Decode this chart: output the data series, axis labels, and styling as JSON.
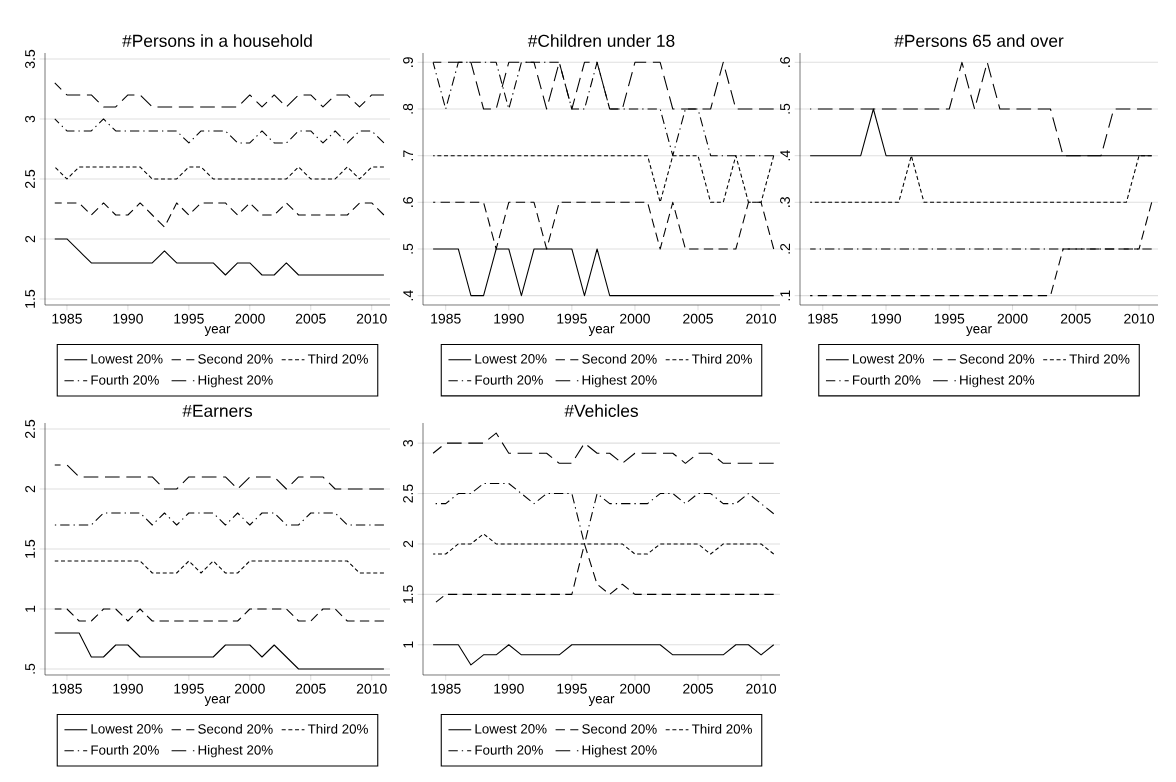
{
  "chart_data": [
    {
      "type": "line",
      "title": "#Persons in a household",
      "xlabel": "year",
      "x": [
        1984,
        1985,
        1986,
        1987,
        1988,
        1989,
        1990,
        1991,
        1992,
        1993,
        1994,
        1995,
        1996,
        1997,
        1998,
        1999,
        2000,
        2001,
        2002,
        2003,
        2004,
        2005,
        2006,
        2007,
        2008,
        2009,
        2010,
        2011
      ],
      "xlim": [
        1983.2,
        2011.5
      ],
      "xticks": [
        1985,
        1990,
        1995,
        2000,
        2005,
        2010
      ],
      "ylim": [
        1.45,
        3.55
      ],
      "yticks": [
        1.5,
        2,
        2.5,
        3,
        3.5
      ],
      "grid": "y",
      "legend": "bottom",
      "series": [
        {
          "name": "Lowest 20%",
          "color": "#000000",
          "line_style": "solid",
          "values": [
            2.0,
            2.0,
            1.9,
            1.8,
            1.8,
            1.8,
            1.8,
            1.8,
            1.8,
            1.9,
            1.8,
            1.8,
            1.8,
            1.8,
            1.7,
            1.8,
            1.8,
            1.7,
            1.7,
            1.8,
            1.7,
            1.7,
            1.7,
            1.7,
            1.7,
            1.7,
            1.7,
            1.7
          ]
        },
        {
          "name": "Second 20%",
          "color": "#000000",
          "line_style": "dashed",
          "values": [
            2.3,
            2.3,
            2.3,
            2.2,
            2.3,
            2.2,
            2.2,
            2.3,
            2.2,
            2.1,
            2.3,
            2.2,
            2.3,
            2.3,
            2.3,
            2.2,
            2.3,
            2.2,
            2.2,
            2.3,
            2.2,
            2.2,
            2.2,
            2.2,
            2.2,
            2.3,
            2.3,
            2.2
          ]
        },
        {
          "name": "Third 20%",
          "color": "#000000",
          "line_style": "dotted",
          "values": [
            2.6,
            2.5,
            2.6,
            2.6,
            2.6,
            2.6,
            2.6,
            2.6,
            2.5,
            2.5,
            2.5,
            2.6,
            2.6,
            2.5,
            2.5,
            2.5,
            2.5,
            2.5,
            2.5,
            2.5,
            2.6,
            2.5,
            2.5,
            2.5,
            2.6,
            2.5,
            2.6,
            2.6
          ]
        },
        {
          "name": "Fourth 20%",
          "color": "#000000",
          "line_style": "dashdot",
          "values": [
            3.0,
            2.9,
            2.9,
            2.9,
            3.0,
            2.9,
            2.9,
            2.9,
            2.9,
            2.9,
            2.9,
            2.8,
            2.9,
            2.9,
            2.9,
            2.8,
            2.8,
            2.9,
            2.8,
            2.8,
            2.9,
            2.9,
            2.8,
            2.9,
            2.8,
            2.9,
            2.9,
            2.8
          ]
        },
        {
          "name": "Highest 20%",
          "color": "#000000",
          "line_style": "longdash",
          "values": [
            3.3,
            3.2,
            3.2,
            3.2,
            3.1,
            3.1,
            3.2,
            3.2,
            3.1,
            3.1,
            3.1,
            3.1,
            3.1,
            3.1,
            3.1,
            3.1,
            3.2,
            3.1,
            3.2,
            3.1,
            3.2,
            3.2,
            3.1,
            3.2,
            3.2,
            3.1,
            3.2,
            3.2
          ]
        }
      ]
    },
    {
      "type": "line",
      "title": "#Children under 18",
      "xlabel": "year",
      "x": [
        1984,
        1985,
        1986,
        1987,
        1988,
        1989,
        1990,
        1991,
        1992,
        1993,
        1994,
        1995,
        1996,
        1997,
        1998,
        1999,
        2000,
        2001,
        2002,
        2003,
        2004,
        2005,
        2006,
        2007,
        2008,
        2009,
        2010,
        2011
      ],
      "xlim": [
        1983.2,
        2011.5
      ],
      "xticks": [
        1985,
        1990,
        1995,
        2000,
        2005,
        2010
      ],
      "ylim": [
        0.38,
        0.92
      ],
      "yticks": [
        {
          "value": 0.4,
          "label": ".4"
        },
        {
          "value": 0.5,
          "label": ".5"
        },
        {
          "value": 0.6,
          "label": ".6"
        },
        {
          "value": 0.7,
          "label": ".7"
        },
        {
          "value": 0.8,
          "label": ".8"
        },
        {
          "value": 0.9,
          "label": ".9"
        }
      ],
      "grid": "y",
      "legend": "bottom",
      "series": [
        {
          "name": "Lowest 20%",
          "color": "#000000",
          "line_style": "solid",
          "values": [
            0.5,
            0.5,
            0.5,
            0.4,
            0.4,
            0.5,
            0.5,
            0.4,
            0.5,
            0.5,
            0.5,
            0.5,
            0.4,
            0.5,
            0.4,
            0.4,
            0.4,
            0.4,
            0.4,
            0.4,
            0.4,
            0.4,
            0.4,
            0.4,
            0.4,
            0.4,
            0.4,
            0.4
          ]
        },
        {
          "name": "Second 20%",
          "color": "#000000",
          "line_style": "dashed",
          "values": [
            0.6,
            0.6,
            0.6,
            0.6,
            0.6,
            0.5,
            0.6,
            0.6,
            0.6,
            0.5,
            0.6,
            0.6,
            0.6,
            0.6,
            0.6,
            0.6,
            0.6,
            0.6,
            0.5,
            0.6,
            0.5,
            0.5,
            0.5,
            0.5,
            0.5,
            0.6,
            0.6,
            0.5
          ]
        },
        {
          "name": "Third 20%",
          "color": "#000000",
          "line_style": "dotted",
          "values": [
            0.7,
            0.7,
            0.7,
            0.7,
            0.7,
            0.7,
            0.7,
            0.7,
            0.7,
            0.7,
            0.7,
            0.7,
            0.7,
            0.7,
            0.7,
            0.7,
            0.7,
            0.7,
            0.6,
            0.7,
            0.7,
            0.7,
            0.6,
            0.6,
            0.7,
            0.6,
            0.6,
            0.7
          ]
        },
        {
          "name": "Fourth 20%",
          "color": "#000000",
          "line_style": "dashdot",
          "values": [
            0.9,
            0.8,
            0.9,
            0.9,
            0.9,
            0.9,
            0.8,
            0.9,
            0.9,
            0.9,
            0.9,
            0.8,
            0.8,
            0.9,
            0.8,
            0.8,
            0.8,
            0.8,
            0.8,
            0.7,
            0.8,
            0.8,
            0.7,
            0.7,
            0.7,
            0.7,
            0.7,
            0.7
          ]
        },
        {
          "name": "Highest 20%",
          "color": "#000000",
          "line_style": "longdash",
          "values": [
            0.9,
            0.9,
            0.9,
            0.9,
            0.8,
            0.8,
            0.9,
            0.9,
            0.9,
            0.8,
            0.9,
            0.8,
            0.9,
            0.9,
            0.8,
            0.8,
            0.9,
            0.9,
            0.9,
            0.8,
            0.8,
            0.8,
            0.8,
            0.9,
            0.8,
            0.8,
            0.8,
            0.8
          ]
        }
      ]
    },
    {
      "type": "line",
      "title": "#Persons 65 and over",
      "xlabel": "year",
      "x": [
        1984,
        1985,
        1986,
        1987,
        1988,
        1989,
        1990,
        1991,
        1992,
        1993,
        1994,
        1995,
        1996,
        1997,
        1998,
        1999,
        2000,
        2001,
        2002,
        2003,
        2004,
        2005,
        2006,
        2007,
        2008,
        2009,
        2010,
        2011
      ],
      "xlim": [
        1983.2,
        2011.5
      ],
      "xticks": [
        1985,
        1990,
        1995,
        2000,
        2005,
        2010
      ],
      "ylim": [
        0.08,
        0.62
      ],
      "yticks": [
        {
          "value": 0.1,
          "label": ".1"
        },
        {
          "value": 0.2,
          "label": ".2"
        },
        {
          "value": 0.3,
          "label": ".3"
        },
        {
          "value": 0.4,
          "label": ".4"
        },
        {
          "value": 0.5,
          "label": ".5"
        },
        {
          "value": 0.6,
          "label": ".6"
        }
      ],
      "grid": "y",
      "legend": "bottom",
      "series": [
        {
          "name": "Lowest 20%",
          "color": "#000000",
          "line_style": "solid",
          "values": [
            0.4,
            0.4,
            0.4,
            0.4,
            0.4,
            0.5,
            0.4,
            0.4,
            0.4,
            0.4,
            0.4,
            0.4,
            0.4,
            0.4,
            0.4,
            0.4,
            0.4,
            0.4,
            0.4,
            0.4,
            0.4,
            0.4,
            0.4,
            0.4,
            0.4,
            0.4,
            0.4,
            0.4
          ]
        },
        {
          "name": "Second 20%",
          "color": "#000000",
          "line_style": "dashed",
          "values": [
            0.1,
            0.1,
            0.1,
            0.1,
            0.1,
            0.1,
            0.1,
            0.1,
            0.1,
            0.1,
            0.1,
            0.1,
            0.1,
            0.1,
            0.1,
            0.1,
            0.1,
            0.1,
            0.1,
            0.1,
            0.2,
            0.2,
            0.2,
            0.2,
            0.2,
            0.2,
            0.2,
            0.3
          ]
        },
        {
          "name": "Third 20%",
          "color": "#000000",
          "line_style": "dotted",
          "values": [
            0.3,
            0.3,
            0.3,
            0.3,
            0.3,
            0.3,
            0.3,
            0.3,
            0.4,
            0.3,
            0.3,
            0.3,
            0.3,
            0.3,
            0.3,
            0.3,
            0.3,
            0.3,
            0.3,
            0.3,
            0.3,
            0.3,
            0.3,
            0.3,
            0.3,
            0.3,
            0.4,
            0.4
          ]
        },
        {
          "name": "Fourth 20%",
          "color": "#000000",
          "line_style": "dashdot",
          "values": [
            0.2,
            0.2,
            0.2,
            0.2,
            0.2,
            0.2,
            0.2,
            0.2,
            0.2,
            0.2,
            0.2,
            0.2,
            0.2,
            0.2,
            0.2,
            0.2,
            0.2,
            0.2,
            0.2,
            0.2,
            0.2,
            0.2,
            0.2,
            0.2,
            0.2,
            0.2,
            0.2,
            0.2
          ]
        },
        {
          "name": "Highest 20%",
          "color": "#000000",
          "line_style": "longdash",
          "values": [
            0.5,
            0.5,
            0.5,
            0.5,
            0.5,
            0.5,
            0.5,
            0.5,
            0.5,
            0.5,
            0.5,
            0.5,
            0.6,
            0.5,
            0.6,
            0.5,
            0.5,
            0.5,
            0.5,
            0.5,
            0.4,
            0.4,
            0.4,
            0.4,
            0.5,
            0.5,
            0.5,
            0.5
          ]
        }
      ]
    },
    {
      "type": "line",
      "title": "#Earners",
      "xlabel": "year",
      "x": [
        1984,
        1985,
        1986,
        1987,
        1988,
        1989,
        1990,
        1991,
        1992,
        1993,
        1994,
        1995,
        1996,
        1997,
        1998,
        1999,
        2000,
        2001,
        2002,
        2003,
        2004,
        2005,
        2006,
        2007,
        2008,
        2009,
        2010,
        2011
      ],
      "xlim": [
        1983.2,
        2011.5
      ],
      "xticks": [
        1985,
        1990,
        1995,
        2000,
        2005,
        2010
      ],
      "ylim": [
        0.45,
        2.55
      ],
      "yticks": [
        {
          "value": 0.5,
          "label": ".5"
        },
        1,
        1.5,
        2,
        2.5
      ],
      "grid": "y",
      "legend": "bottom",
      "series": [
        {
          "name": "Lowest 20%",
          "color": "#000000",
          "line_style": "solid",
          "values": [
            0.8,
            0.8,
            0.8,
            0.6,
            0.6,
            0.7,
            0.7,
            0.6,
            0.6,
            0.6,
            0.6,
            0.6,
            0.6,
            0.6,
            0.7,
            0.7,
            0.7,
            0.6,
            0.7,
            0.6,
            0.5,
            0.5,
            0.5,
            0.5,
            0.5,
            0.5,
            0.5,
            0.5
          ]
        },
        {
          "name": "Second 20%",
          "color": "#000000",
          "line_style": "dashed",
          "values": [
            1.0,
            1.0,
            0.9,
            0.9,
            1.0,
            1.0,
            0.9,
            1.0,
            0.9,
            0.9,
            0.9,
            0.9,
            0.9,
            0.9,
            0.9,
            0.9,
            1.0,
            1.0,
            1.0,
            1.0,
            0.9,
            0.9,
            1.0,
            1.0,
            0.9,
            0.9,
            0.9,
            0.9
          ]
        },
        {
          "name": "Third 20%",
          "color": "#000000",
          "line_style": "dotted",
          "values": [
            1.4,
            1.4,
            1.4,
            1.4,
            1.4,
            1.4,
            1.4,
            1.4,
            1.3,
            1.3,
            1.3,
            1.4,
            1.3,
            1.4,
            1.3,
            1.3,
            1.4,
            1.4,
            1.4,
            1.4,
            1.4,
            1.4,
            1.4,
            1.4,
            1.4,
            1.3,
            1.3,
            1.3
          ]
        },
        {
          "name": "Fourth 20%",
          "color": "#000000",
          "line_style": "dashdot",
          "values": [
            1.7,
            1.7,
            1.7,
            1.7,
            1.8,
            1.8,
            1.8,
            1.8,
            1.7,
            1.8,
            1.7,
            1.8,
            1.8,
            1.8,
            1.7,
            1.8,
            1.7,
            1.8,
            1.8,
            1.7,
            1.7,
            1.8,
            1.8,
            1.8,
            1.7,
            1.7,
            1.7,
            1.7
          ]
        },
        {
          "name": "Highest 20%",
          "color": "#000000",
          "line_style": "longdash",
          "values": [
            2.2,
            2.2,
            2.1,
            2.1,
            2.1,
            2.1,
            2.1,
            2.1,
            2.1,
            2.0,
            2.0,
            2.1,
            2.1,
            2.1,
            2.1,
            2.0,
            2.1,
            2.1,
            2.1,
            2.0,
            2.1,
            2.1,
            2.1,
            2.0,
            2.0,
            2.0,
            2.0,
            2.0
          ]
        }
      ]
    },
    {
      "type": "line",
      "title": "#Vehicles",
      "xlabel": "year",
      "x": [
        1984,
        1985,
        1986,
        1987,
        1988,
        1989,
        1990,
        1991,
        1992,
        1993,
        1994,
        1995,
        1996,
        1997,
        1998,
        1999,
        2000,
        2001,
        2002,
        2003,
        2004,
        2005,
        2006,
        2007,
        2008,
        2009,
        2010,
        2011
      ],
      "xlim": [
        1983.2,
        2011.5
      ],
      "xticks": [
        1985,
        1990,
        1995,
        2000,
        2005,
        2010
      ],
      "ylim": [
        0.7,
        3.2
      ],
      "yticks": [
        1,
        1.5,
        2,
        2.5,
        3
      ],
      "grid": "y",
      "legend": "bottom",
      "series": [
        {
          "name": "Lowest 20%",
          "color": "#000000",
          "line_style": "solid",
          "values": [
            1.0,
            1.0,
            1.0,
            0.8,
            0.9,
            0.9,
            1.0,
            0.9,
            0.9,
            0.9,
            0.9,
            1.0,
            1.0,
            1.0,
            1.0,
            1.0,
            1.0,
            1.0,
            1.0,
            0.9,
            0.9,
            0.9,
            0.9,
            0.9,
            1.0,
            1.0,
            0.9,
            1.0
          ]
        },
        {
          "name": "Second 20%",
          "color": "#000000",
          "line_style": "dashed",
          "values": [
            1.4,
            1.5,
            1.5,
            1.5,
            1.5,
            1.5,
            1.5,
            1.5,
            1.5,
            1.5,
            1.5,
            1.5,
            2.0,
            1.6,
            1.5,
            1.6,
            1.5,
            1.5,
            1.5,
            1.5,
            1.5,
            1.5,
            1.5,
            1.5,
            1.5,
            1.5,
            1.5,
            1.5
          ]
        },
        {
          "name": "Third 20%",
          "color": "#000000",
          "line_style": "dotted",
          "values": [
            1.9,
            1.9,
            2.0,
            2.0,
            2.1,
            2.0,
            2.0,
            2.0,
            2.0,
            2.0,
            2.0,
            2.0,
            2.0,
            2.0,
            2.0,
            2.0,
            1.9,
            1.9,
            2.0,
            2.0,
            2.0,
            2.0,
            1.9,
            2.0,
            2.0,
            2.0,
            2.0,
            1.9
          ]
        },
        {
          "name": "Fourth 20%",
          "color": "#000000",
          "line_style": "dashdot",
          "values": [
            2.4,
            2.4,
            2.5,
            2.5,
            2.6,
            2.6,
            2.6,
            2.5,
            2.4,
            2.5,
            2.5,
            2.5,
            2.0,
            2.5,
            2.4,
            2.4,
            2.4,
            2.4,
            2.5,
            2.5,
            2.4,
            2.5,
            2.5,
            2.4,
            2.4,
            2.5,
            2.4,
            2.3
          ]
        },
        {
          "name": "Highest 20%",
          "color": "#000000",
          "line_style": "longdash",
          "values": [
            2.9,
            3.0,
            3.0,
            3.0,
            3.0,
            3.1,
            2.9,
            2.9,
            2.9,
            2.9,
            2.8,
            2.8,
            3.0,
            2.9,
            2.9,
            2.8,
            2.9,
            2.9,
            2.9,
            2.9,
            2.8,
            2.9,
            2.9,
            2.8,
            2.8,
            2.8,
            2.8,
            2.8
          ]
        }
      ]
    }
  ]
}
